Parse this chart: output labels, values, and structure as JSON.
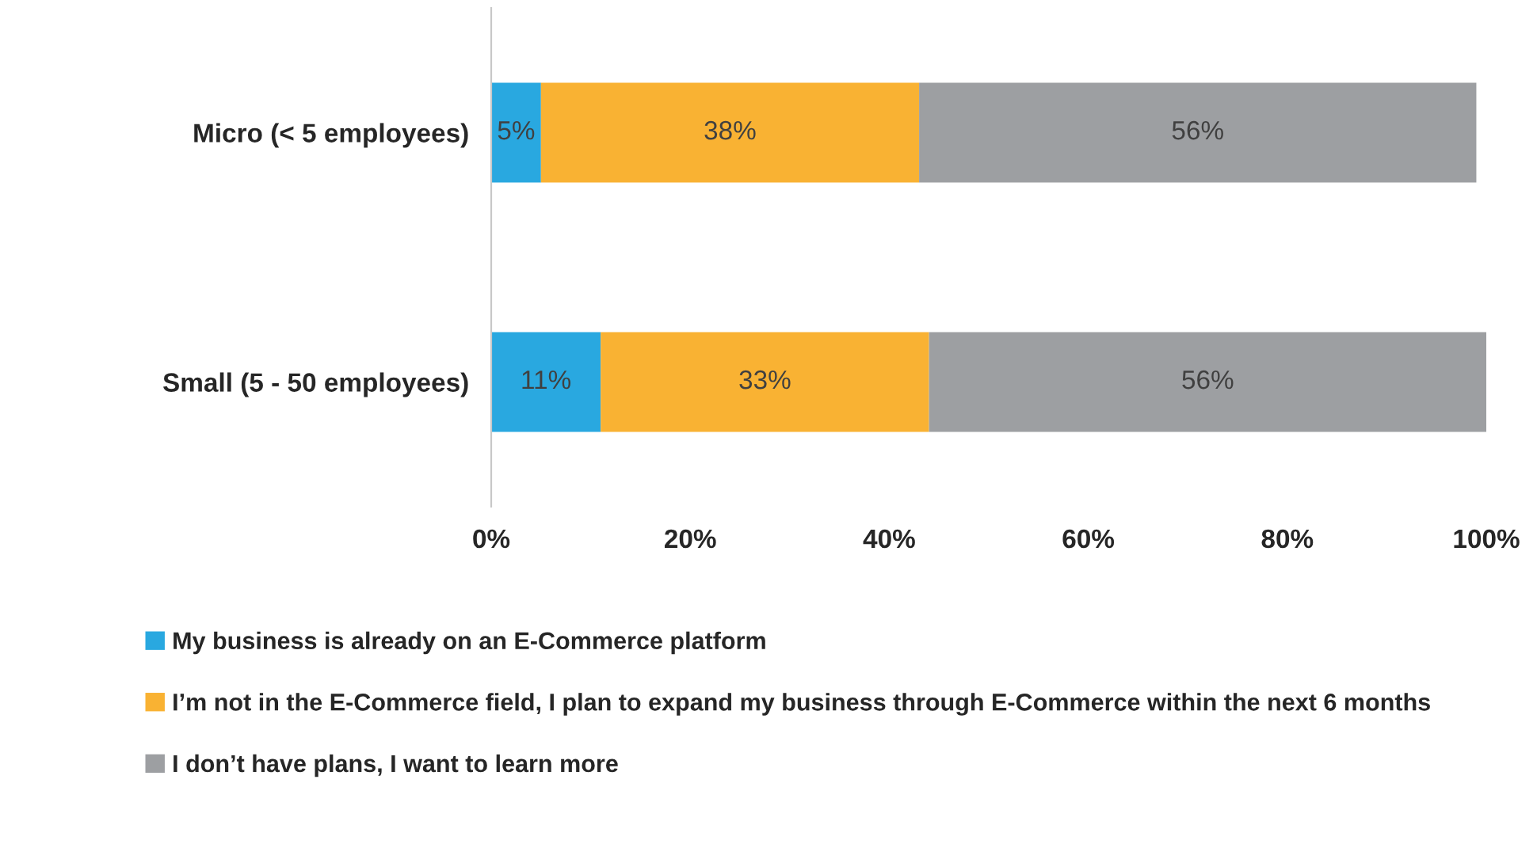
{
  "chart_data": {
    "type": "bar",
    "orientation": "horizontal",
    "stacked": true,
    "categories": [
      "Micro (< 5 employees)",
      "Small (5 - 50 employees)"
    ],
    "series": [
      {
        "name": "My business is already on an E-Commerce platform",
        "color": "#29a8e0",
        "values": [
          5,
          11
        ]
      },
      {
        "name": "I’m not in the E-Commerce field, I plan to expand my business through E-Commerce within the next 6 months",
        "color": "#f9b233",
        "values": [
          38,
          33
        ]
      },
      {
        "name": "I don’t have plans, I want to learn more",
        "color": "#9d9fa2",
        "values": [
          56,
          56
        ]
      }
    ],
    "xlim": [
      0,
      100
    ],
    "xticks": [
      {
        "value": 0,
        "label": "0%"
      },
      {
        "value": 20,
        "label": "20%"
      },
      {
        "value": 40,
        "label": "40%"
      },
      {
        "value": 60,
        "label": "60%"
      },
      {
        "value": 80,
        "label": "80%"
      },
      {
        "value": 100,
        "label": "100%"
      }
    ],
    "value_labels": [
      [
        "5%",
        "11%"
      ],
      [
        "38%",
        "33%"
      ],
      [
        "56%",
        "56%"
      ]
    ],
    "legend": "bottom",
    "grid": false
  }
}
